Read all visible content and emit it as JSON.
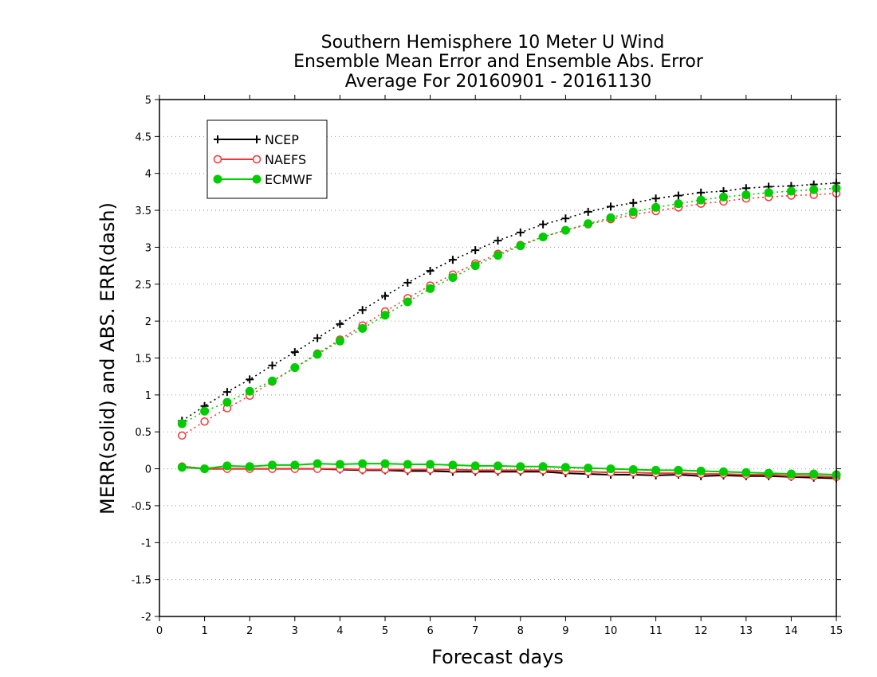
{
  "chart_data": {
    "type": "line",
    "title_lines": [
      "Southern Hemisphere 10 Meter U Wind",
      "Ensemble Mean Error and Ensemble Abs. Error",
      "Average For 20160901 - 20161130"
    ],
    "xlabel": "Forecast days",
    "ylabel": "MERR(solid) and ABS. ERR(dash)",
    "xlim": [
      0,
      15
    ],
    "ylim": [
      -2,
      5
    ],
    "x_ticks": [
      "0",
      "1",
      "2",
      "3",
      "4",
      "5",
      "6",
      "7",
      "8",
      "9",
      "10",
      "11",
      "12",
      "13",
      "14",
      "15"
    ],
    "y_ticks": [
      "-2",
      "-1.5",
      "-1",
      "-0.5",
      "0",
      "0.5",
      "1",
      "1.5",
      "2",
      "2.5",
      "3",
      "3.5",
      "4",
      "4.5",
      "5"
    ],
    "grid": "horizontal-dotted",
    "legend_position": "top-left",
    "x": [
      0.5,
      1,
      1.5,
      2,
      2.5,
      3,
      3.5,
      4,
      4.5,
      5,
      5.5,
      6,
      6.5,
      7,
      7.5,
      8,
      8.5,
      9,
      9.5,
      10,
      10.5,
      11,
      11.5,
      12,
      12.5,
      13,
      13.5,
      14,
      14.5,
      15
    ],
    "series": [
      {
        "name": "NCEP",
        "color": "#000000",
        "marker": "plus",
        "abs_err": [
          0.65,
          0.85,
          1.04,
          1.21,
          1.4,
          1.58,
          1.77,
          1.96,
          2.15,
          2.34,
          2.52,
          2.68,
          2.83,
          2.96,
          3.09,
          3.2,
          3.31,
          3.39,
          3.48,
          3.55,
          3.6,
          3.66,
          3.7,
          3.74,
          3.76,
          3.8,
          3.82,
          3.83,
          3.85,
          3.87
        ],
        "mean_err": [
          0.03,
          0.0,
          0.0,
          0.0,
          0.0,
          0.0,
          0.0,
          -0.01,
          -0.02,
          -0.02,
          -0.03,
          -0.03,
          -0.04,
          -0.04,
          -0.04,
          -0.04,
          -0.04,
          -0.06,
          -0.07,
          -0.08,
          -0.08,
          -0.09,
          -0.08,
          -0.1,
          -0.09,
          -0.1,
          -0.1,
          -0.11,
          -0.12,
          -0.13
        ]
      },
      {
        "name": "NAEFS",
        "color": "#ff3333",
        "marker": "open-circle",
        "abs_err": [
          0.45,
          0.64,
          0.82,
          0.99,
          1.18,
          1.37,
          1.56,
          1.75,
          1.94,
          2.13,
          2.31,
          2.48,
          2.63,
          2.78,
          2.91,
          3.03,
          3.14,
          3.23,
          3.31,
          3.38,
          3.44,
          3.49,
          3.54,
          3.59,
          3.62,
          3.66,
          3.68,
          3.7,
          3.71,
          3.73
        ],
        "mean_err": [
          0.03,
          0.0,
          0.0,
          0.0,
          0.0,
          0.0,
          0.0,
          0.0,
          -0.01,
          -0.01,
          -0.01,
          -0.01,
          -0.01,
          -0.02,
          -0.02,
          -0.02,
          -0.02,
          -0.03,
          -0.04,
          -0.05,
          -0.05,
          -0.06,
          -0.06,
          -0.07,
          -0.07,
          -0.08,
          -0.08,
          -0.1,
          -0.1,
          -0.11
        ]
      },
      {
        "name": "ECMWF",
        "color": "#00cc00",
        "marker": "filled-circle",
        "abs_err": [
          0.61,
          0.78,
          0.9,
          1.05,
          1.19,
          1.37,
          1.55,
          1.73,
          1.9,
          2.08,
          2.26,
          2.44,
          2.59,
          2.75,
          2.89,
          3.02,
          3.14,
          3.23,
          3.32,
          3.4,
          3.48,
          3.54,
          3.59,
          3.64,
          3.68,
          3.71,
          3.74,
          3.76,
          3.78,
          3.8
        ],
        "mean_err": [
          0.02,
          0.0,
          0.04,
          0.03,
          0.05,
          0.05,
          0.07,
          0.06,
          0.07,
          0.07,
          0.06,
          0.06,
          0.05,
          0.04,
          0.04,
          0.03,
          0.03,
          0.02,
          0.01,
          0.0,
          -0.01,
          -0.02,
          -0.02,
          -0.03,
          -0.04,
          -0.05,
          -0.06,
          -0.07,
          -0.07,
          -0.08
        ]
      }
    ]
  }
}
